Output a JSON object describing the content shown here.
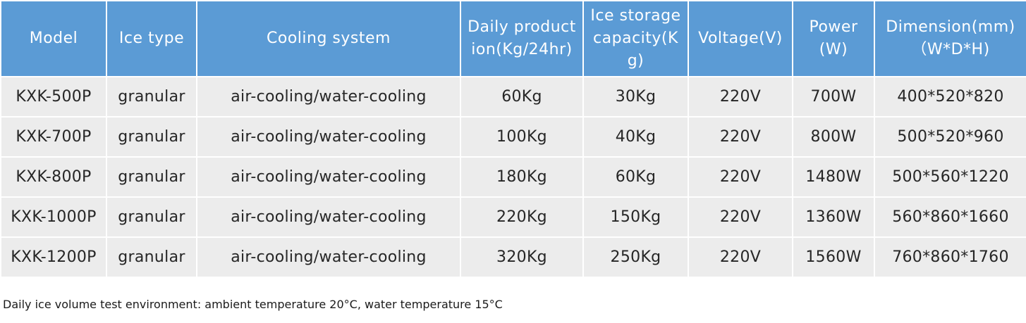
{
  "table": {
    "headers": [
      "Model",
      "Ice type",
      "Cooling system",
      "Daily production(Kg/24hr)",
      "Ice storagecapacity(Kg)",
      "Voltage(V)",
      "Power(W)",
      "Dimension(mm)（W*D*H)"
    ],
    "rows": [
      [
        "KXK-500P",
        "granular",
        "air-cooling/water-cooling",
        "60Kg",
        "30Kg",
        "220V",
        "700W",
        "400*520*820"
      ],
      [
        "KXK-700P",
        "granular",
        "air-cooling/water-cooling",
        "100Kg",
        "40Kg",
        "220V",
        "800W",
        "500*520*960"
      ],
      [
        "KXK-800P",
        "granular",
        "air-cooling/water-cooling",
        "180Kg",
        "60Kg",
        "220V",
        "1480W",
        "500*560*1220"
      ],
      [
        "KXK-1000P",
        "granular",
        "air-cooling/water-cooling",
        "220Kg",
        "150Kg",
        "220V",
        "1360W",
        "560*860*1660"
      ],
      [
        "KXK-1200P",
        "granular",
        "air-cooling/water-cooling",
        "320Kg",
        "250Kg",
        "220V",
        "1560W",
        "760*860*1760"
      ]
    ]
  },
  "note": "Daily ice volume test environment: ambient temperature 20°C, water temperature 15°C",
  "colors": {
    "header_bg": "#5b9bd5",
    "header_text": "#ffffff",
    "cell_bg": "#ececec",
    "cell_text": "#262626"
  }
}
